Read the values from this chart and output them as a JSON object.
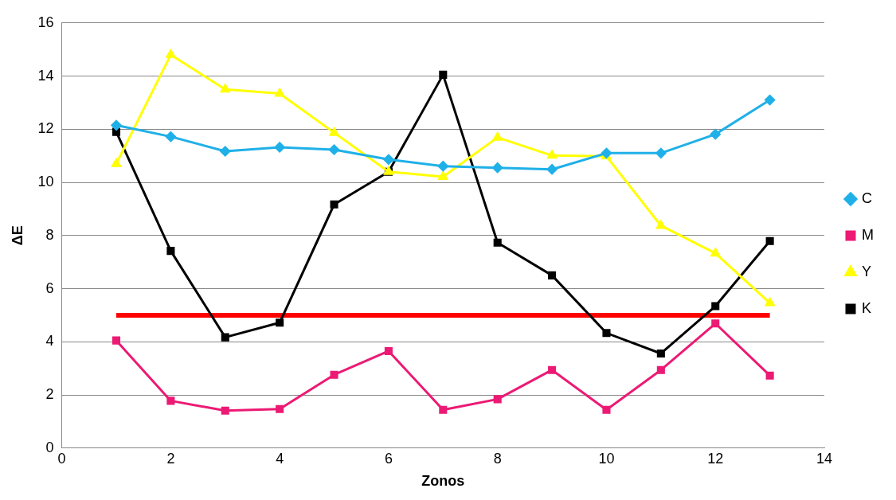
{
  "chart_data": {
    "type": "line",
    "xlabel": "Zonos",
    "ylabel": "ΔE",
    "x": [
      1,
      2,
      3,
      4,
      5,
      6,
      7,
      8,
      9,
      10,
      11,
      12,
      13
    ],
    "xlim": [
      0,
      14
    ],
    "xticks": [
      0,
      2,
      4,
      6,
      8,
      10,
      12,
      14
    ],
    "ylim": [
      0,
      16
    ],
    "yticks": [
      0,
      2,
      4,
      6,
      8,
      10,
      12,
      14,
      16
    ],
    "grid": "y",
    "legend": "right",
    "line_style": "solid",
    "series": [
      {
        "name": "C",
        "color": "#1fb0e8",
        "marker": "diamond",
        "values": [
          12.15,
          11.72,
          11.17,
          11.32,
          11.23,
          10.86,
          10.61,
          10.55,
          10.49,
          11.1,
          11.1,
          11.81,
          13.1
        ]
      },
      {
        "name": "M",
        "color": "#ec1a74",
        "marker": "square",
        "values": [
          4.05,
          1.78,
          1.41,
          1.47,
          2.76,
          3.65,
          1.44,
          1.84,
          2.94,
          1.44,
          2.94,
          4.69,
          2.73
        ]
      },
      {
        "name": "Y",
        "color": "#ffff00",
        "marker": "triangle",
        "values": [
          10.7,
          14.8,
          13.5,
          13.34,
          11.87,
          10.4,
          10.21,
          11.69,
          11.01,
          10.98,
          8.37,
          7.33,
          5.46
        ]
      },
      {
        "name": "K",
        "color": "#000000",
        "marker": "square",
        "values": [
          11.9,
          7.42,
          4.17,
          4.72,
          9.17,
          10.4,
          14.05,
          7.73,
          6.5,
          4.33,
          3.56,
          5.34,
          7.79
        ]
      },
      {
        "color": "#ff0000",
        "marker": "none",
        "x": [
          1,
          13
        ],
        "values": [
          5,
          5
        ]
      }
    ]
  }
}
